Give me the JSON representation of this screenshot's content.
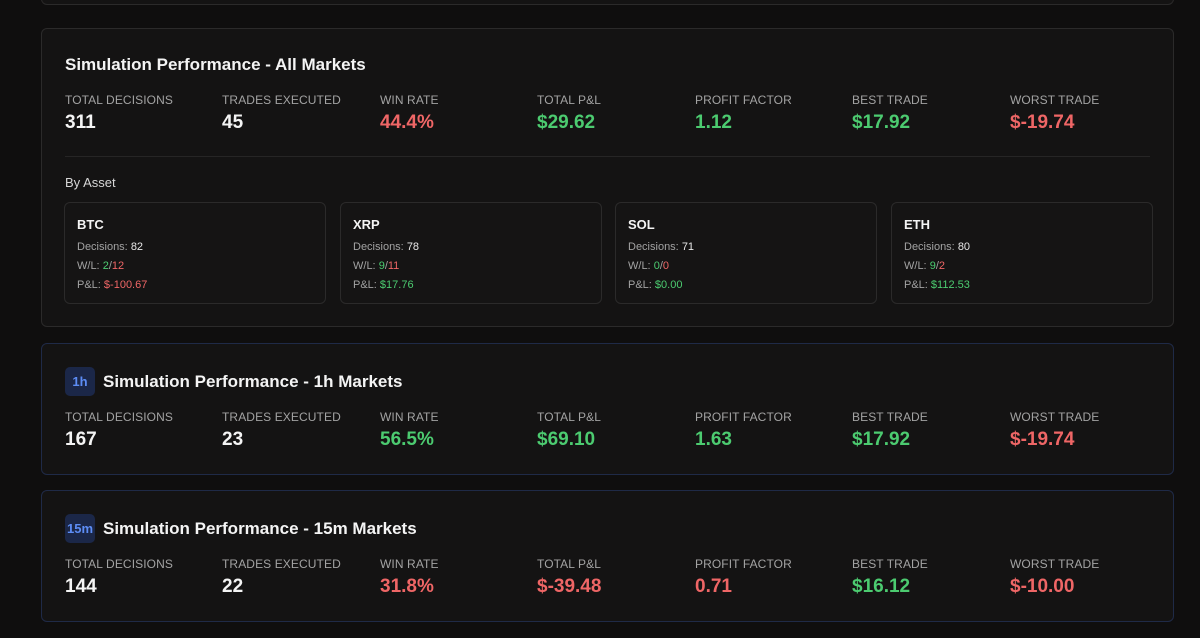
{
  "all_markets": {
    "title": "Simulation Performance - All Markets",
    "metrics": [
      {
        "label": "TOTAL DECISIONS",
        "value": "311"
      },
      {
        "label": "TRADES EXECUTED",
        "value": "45"
      },
      {
        "label": "WIN RATE",
        "value": "44.4%"
      },
      {
        "label": "TOTAL P&L",
        "value": "$29.62"
      },
      {
        "label": "PROFIT FACTOR",
        "value": "1.12"
      },
      {
        "label": "BEST TRADE",
        "value": "$17.92"
      },
      {
        "label": "WORST TRADE",
        "value": "$-19.74"
      }
    ],
    "by_asset_label": "By Asset",
    "assets": [
      {
        "name": "BTC",
        "decisions_label": "Decisions:",
        "decisions": "82",
        "wl_label": "W/L:",
        "wins": "2",
        "slash": "/",
        "losses": "12",
        "pnl_label": "P&L:",
        "pnl": "$-100.67"
      },
      {
        "name": "XRP",
        "decisions_label": "Decisions:",
        "decisions": "78",
        "wl_label": "W/L:",
        "wins": "9",
        "slash": "/",
        "losses": "11",
        "pnl_label": "P&L:",
        "pnl": "$17.76"
      },
      {
        "name": "SOL",
        "decisions_label": "Decisions:",
        "decisions": "71",
        "wl_label": "W/L:",
        "wins": "0",
        "slash": "/",
        "losses": "0",
        "pnl_label": "P&L:",
        "pnl": "$0.00"
      },
      {
        "name": "ETH",
        "decisions_label": "Decisions:",
        "decisions": "80",
        "wl_label": "W/L:",
        "wins": "9",
        "slash": "/",
        "losses": "2",
        "pnl_label": "P&L:",
        "pnl": "$112.53"
      }
    ]
  },
  "markets_1h": {
    "badge": "1h",
    "title": "Simulation Performance - 1h Markets",
    "metrics": [
      {
        "label": "TOTAL DECISIONS",
        "value": "167"
      },
      {
        "label": "TRADES EXECUTED",
        "value": "23"
      },
      {
        "label": "WIN RATE",
        "value": "56.5%"
      },
      {
        "label": "TOTAL P&L",
        "value": "$69.10"
      },
      {
        "label": "PROFIT FACTOR",
        "value": "1.63"
      },
      {
        "label": "BEST TRADE",
        "value": "$17.92"
      },
      {
        "label": "WORST TRADE",
        "value": "$-19.74"
      }
    ]
  },
  "markets_15m": {
    "badge": "15m",
    "title": "Simulation Performance - 15m Markets",
    "metrics": [
      {
        "label": "TOTAL DECISIONS",
        "value": "144"
      },
      {
        "label": "TRADES EXECUTED",
        "value": "22"
      },
      {
        "label": "WIN RATE",
        "value": "31.8%"
      },
      {
        "label": "TOTAL P&L",
        "value": "$-39.48"
      },
      {
        "label": "PROFIT FACTOR",
        "value": "0.71"
      },
      {
        "label": "BEST TRADE",
        "value": "$16.12"
      },
      {
        "label": "WORST TRADE",
        "value": "$-10.00"
      }
    ]
  },
  "colors": {
    "positive": "#4ccb70",
    "negative": "#ef6666",
    "badge_bg": "#1b2748",
    "badge_text": "#5d8df5"
  }
}
